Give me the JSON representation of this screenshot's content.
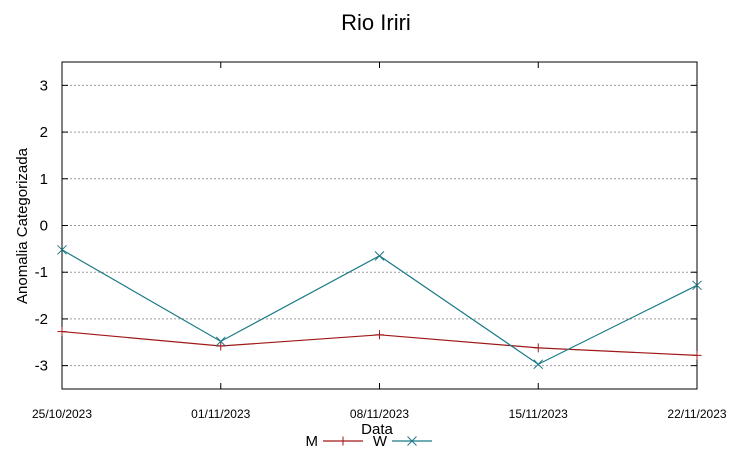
{
  "chart_data": {
    "type": "line",
    "title": "Rio Iriri",
    "xlabel": "Data",
    "ylabel": "Anomalia Categorizada",
    "categories": [
      "25/10/2023",
      "01/11/2023",
      "08/11/2023",
      "15/11/2023",
      "22/11/2023"
    ],
    "yticks": [
      "3",
      "2",
      "1",
      "0",
      "-1",
      "-2",
      "-3"
    ],
    "ylim": [
      -3.5,
      3.5
    ],
    "grid": true,
    "legend_position": "bottom",
    "series": [
      {
        "name": "M",
        "values": [
          -2.27,
          -2.58,
          -2.34,
          -2.62,
          -2.78
        ],
        "color": "#a01818",
        "marker": "plus"
      },
      {
        "name": "W",
        "values": [
          -0.52,
          -2.48,
          -0.65,
          -2.97,
          -1.28
        ],
        "color": "#1a7a86",
        "marker": "cross"
      }
    ]
  }
}
